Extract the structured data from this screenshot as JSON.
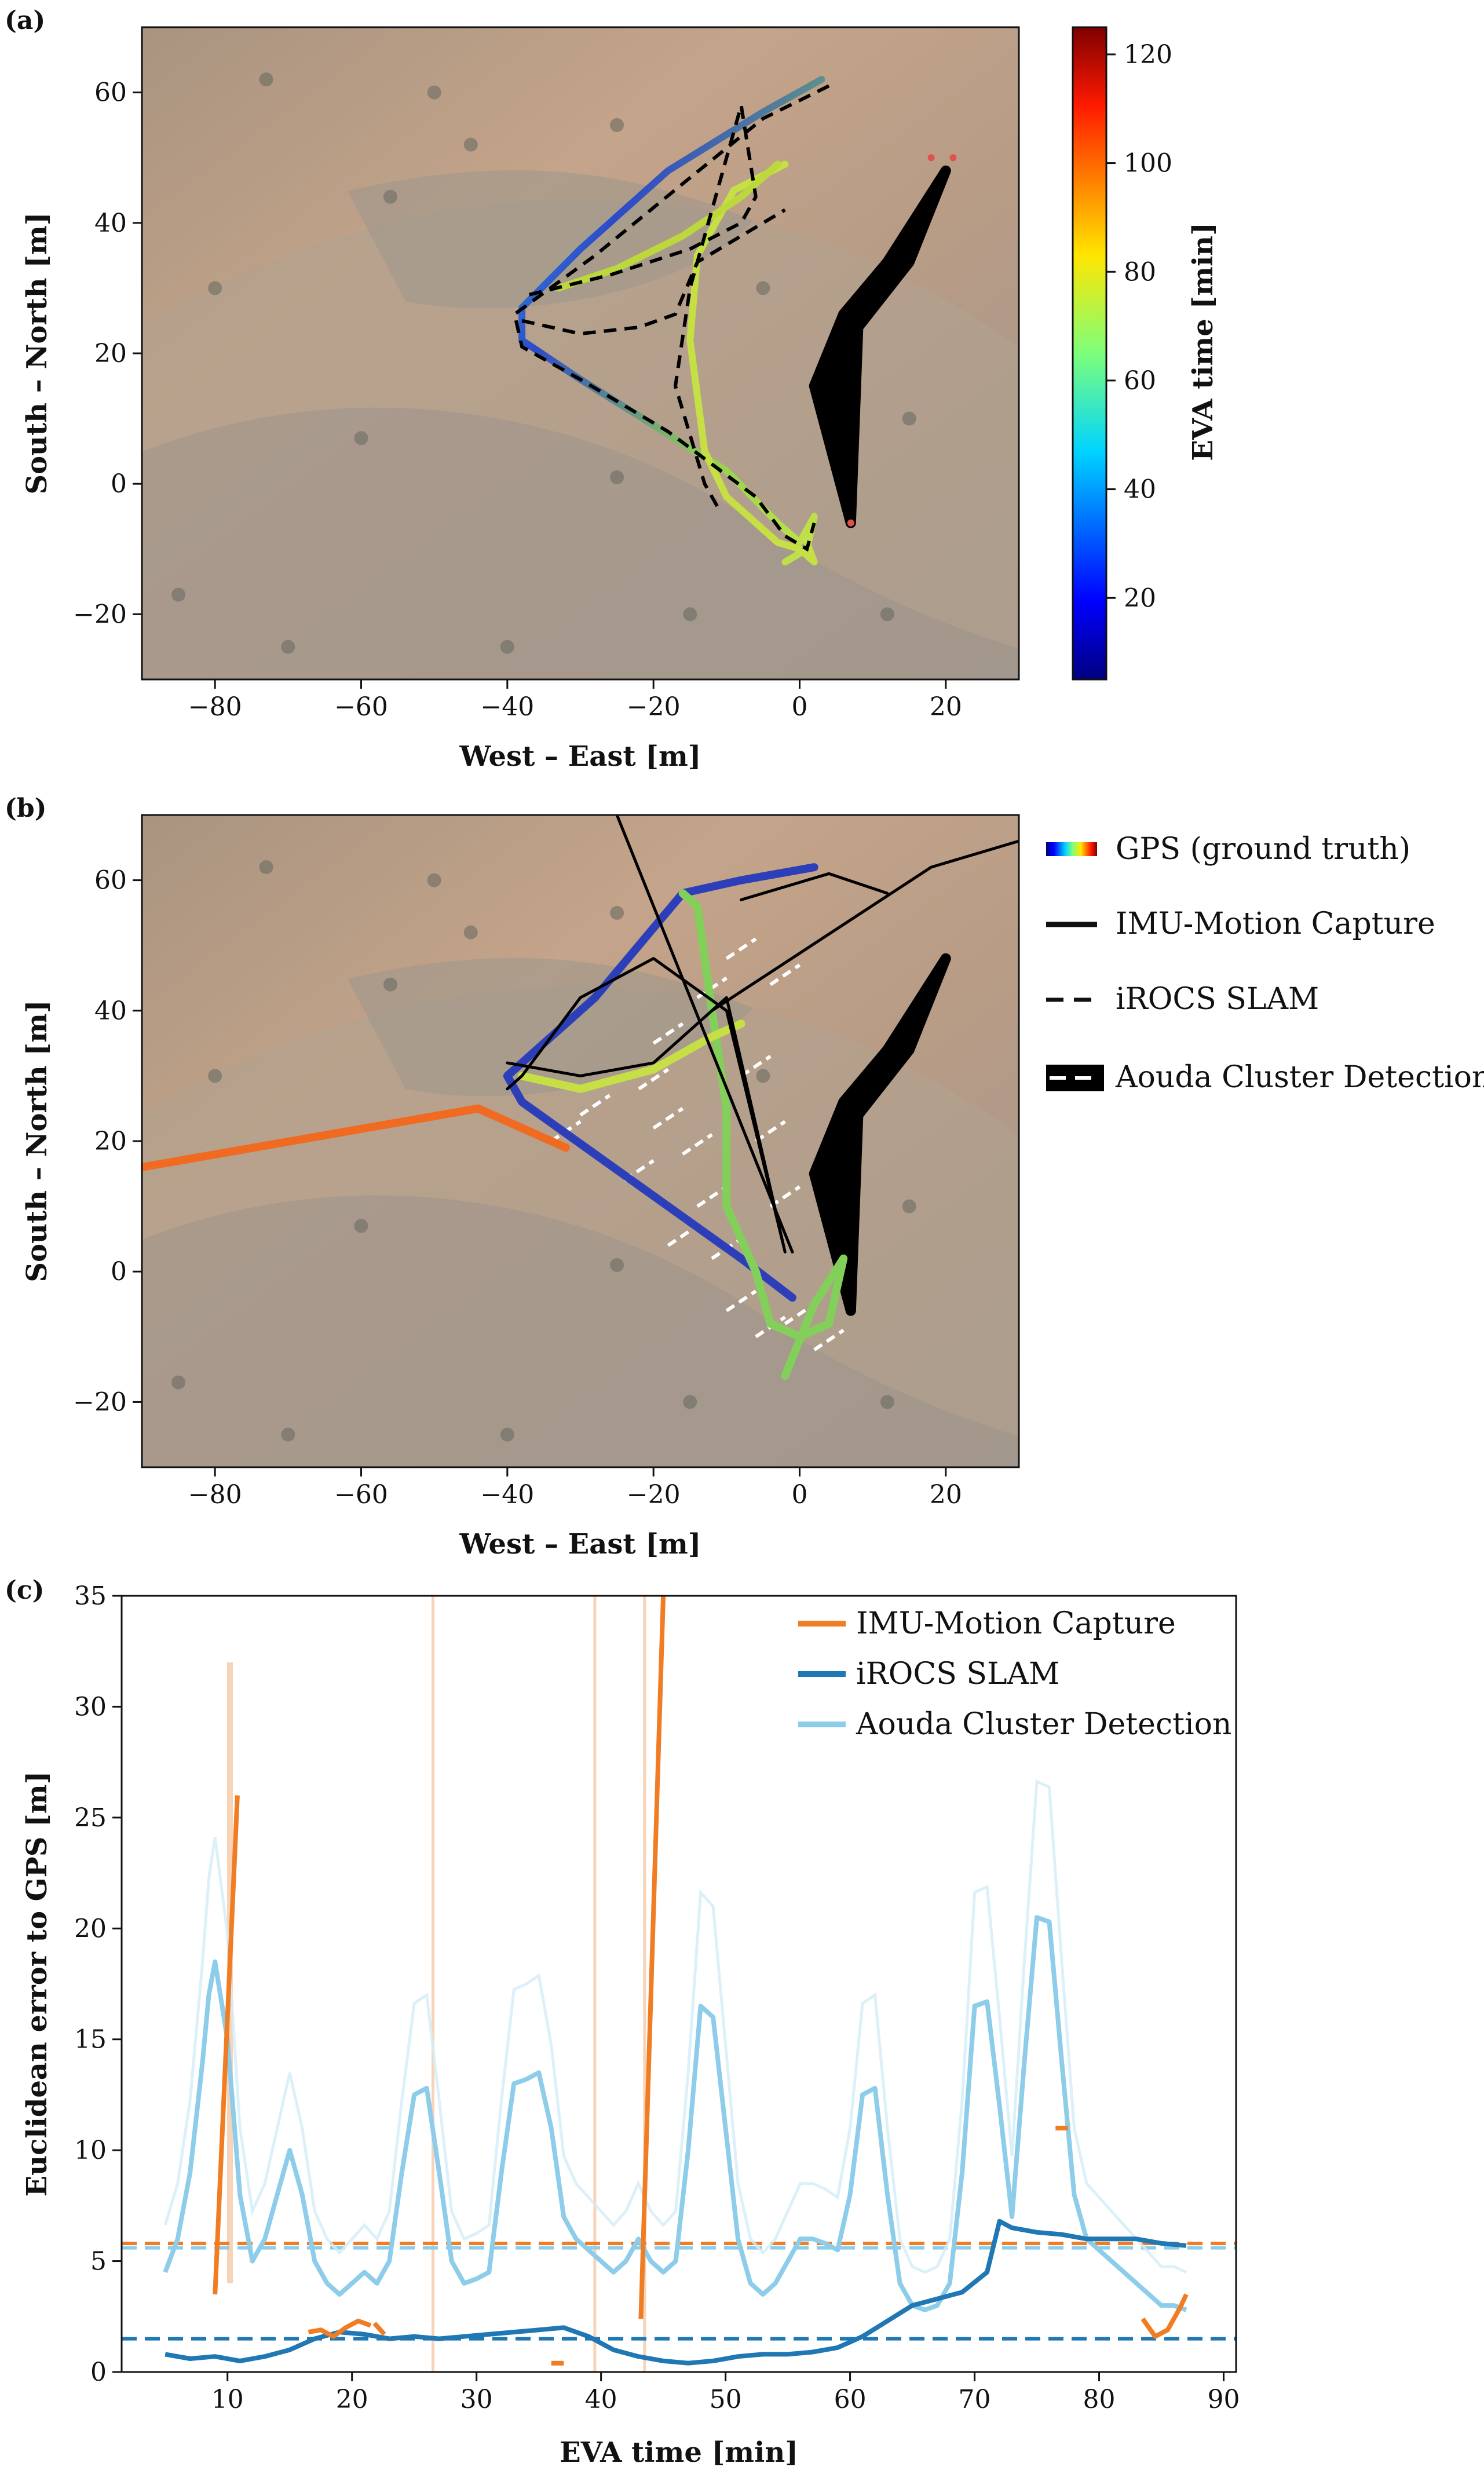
{
  "panel_labels": {
    "a": "(a)",
    "b": "(b)",
    "c": "(c)"
  },
  "chart_data": [
    {
      "type": "line",
      "panel": "(a)",
      "xlabel": "West – East [m]",
      "ylabel": "South – North [m]",
      "xlim": [
        -90,
        30
      ],
      "ylim": [
        -30,
        70
      ],
      "xticks": [
        -80,
        -60,
        -40,
        -20,
        0,
        20
      ],
      "yticks": [
        -20,
        0,
        20,
        40,
        60
      ],
      "background": "aerial-satellite-image",
      "colorbar": {
        "label": "EVA time [min]",
        "range": [
          5,
          125
        ],
        "ticks": [
          20,
          40,
          60,
          80,
          100,
          120
        ],
        "colormap": "jet"
      },
      "series": [
        {
          "style": "gps-colored",
          "x": [
            3,
            -5,
            -18,
            -30,
            -38,
            -38,
            -30,
            -20,
            -10,
            -3,
            0,
            2,
            1,
            -2
          ],
          "y": [
            62,
            57,
            48,
            36,
            27,
            22,
            16,
            9,
            2,
            -6,
            -9,
            -5,
            -10,
            -12
          ]
        },
        {
          "style": "gps-colored",
          "x": [
            -2,
            -9,
            -14,
            -15,
            -13,
            -10,
            -6,
            -3,
            0,
            2,
            1
          ],
          "y": [
            49,
            45,
            35,
            22,
            5,
            -2,
            -6,
            -9,
            -10,
            -12,
            -9
          ]
        },
        {
          "style": "gps-colored",
          "x": [
            -33,
            -25,
            -16,
            -8,
            -3
          ],
          "y": [
            30,
            33,
            38,
            44,
            49
          ]
        },
        {
          "style": "dashed-black",
          "x": [
            4,
            -5,
            -16,
            -28,
            -39,
            -38,
            -30,
            -18,
            -6,
            -2,
            1,
            2
          ],
          "y": [
            61,
            56,
            46,
            35,
            26,
            21,
            16,
            8,
            -2,
            -8,
            -10,
            -6
          ]
        },
        {
          "style": "dashed-black",
          "x": [
            -37,
            -26,
            -15,
            -8,
            -6,
            -8,
            -15,
            -17,
            -13,
            -11
          ],
          "y": [
            29,
            32,
            36,
            40,
            44,
            58,
            30,
            15,
            0,
            -4
          ]
        },
        {
          "style": "dashed-black",
          "x": [
            -38,
            -30,
            -22,
            -17,
            -14,
            -5,
            -2
          ],
          "y": [
            25,
            23,
            24,
            26,
            34,
            40,
            42
          ]
        }
      ],
      "cluster_band": {
        "x": [
          2,
          6,
          12,
          20,
          20,
          15,
          8,
          7,
          2
        ],
        "y": [
          15,
          26,
          34,
          48,
          48,
          34,
          24,
          -6,
          15
        ]
      },
      "cluster_endpoints_x": [
        18,
        21,
        7
      ],
      "cluster_endpoints_y": [
        50,
        50,
        -6
      ]
    },
    {
      "type": "line",
      "panel": "(b)",
      "xlabel": "West – East [m]",
      "ylabel": "South – North [m]",
      "xlim": [
        -90,
        30
      ],
      "ylim": [
        -30,
        70
      ],
      "xticks": [
        -80,
        -60,
        -40,
        -20,
        0,
        20
      ],
      "yticks": [
        -20,
        0,
        20,
        40,
        60
      ],
      "background": "aerial-satellite-image",
      "legend": [
        {
          "label": "GPS (ground truth)",
          "style": "gradient"
        },
        {
          "label": "IMU-Motion Capture",
          "style": "solid"
        },
        {
          "label": "iROCS SLAM",
          "style": "dashed"
        },
        {
          "label": "Aouda Cluster Detection",
          "style": "dashed-band"
        }
      ],
      "series": [
        {
          "style": "gps-colored",
          "x": [
            2,
            -8,
            -16,
            -28,
            -40,
            -38,
            -28,
            -18,
            -8,
            -1
          ],
          "y": [
            62,
            60,
            58,
            42,
            30,
            26,
            18,
            10,
            2,
            -4
          ]
        },
        {
          "style": "gps-colored",
          "x": [
            -16,
            -14,
            -12,
            -10,
            -10,
            -6,
            -4,
            0,
            4,
            6,
            2,
            -2
          ],
          "y": [
            58,
            56,
            40,
            25,
            10,
            0,
            -8,
            -10,
            -8,
            2,
            -5,
            -16
          ]
        },
        {
          "style": "gps-colored",
          "x": [
            -38,
            -30,
            -20,
            -12,
            -8
          ],
          "y": [
            30,
            28,
            31,
            36,
            38
          ]
        },
        {
          "style": "imu-orange",
          "x": [
            -90,
            -44,
            -32
          ],
          "y": [
            16,
            25,
            19
          ]
        },
        {
          "style": "imu-black",
          "x": [
            -40,
            -30,
            -20,
            -10,
            -2,
            -10,
            -20,
            -30,
            -38,
            -40
          ],
          "y": [
            32,
            30,
            32,
            42,
            3,
            40,
            48,
            42,
            30,
            28
          ]
        },
        {
          "style": "imu-black",
          "x": [
            -25,
            -1
          ],
          "y": [
            70,
            3
          ]
        },
        {
          "style": "imu-black",
          "x": [
            -12,
            18,
            30
          ],
          "y": [
            40,
            62,
            66
          ]
        },
        {
          "style": "imu-black",
          "x": [
            -8,
            4,
            12
          ],
          "y": [
            57,
            61,
            58
          ]
        }
      ]
    },
    {
      "type": "line",
      "panel": "(c)",
      "xlabel": "EVA time [min]",
      "ylabel": "Euclidean error to GPS [m]",
      "xlim": [
        1.5,
        91
      ],
      "ylim": [
        0,
        35
      ],
      "xticks": [
        10,
        20,
        30,
        40,
        50,
        60,
        70,
        80,
        90
      ],
      "yticks": [
        0,
        5,
        10,
        15,
        20,
        25,
        30,
        35
      ],
      "legend_placement": "top-right",
      "series": [
        {
          "name": "IMU-Motion Capture",
          "color": "#f07c24",
          "mean": 5.8,
          "segments": [
            {
              "x": [
                9,
                10.8
              ],
              "y": [
                3.5,
                26
              ]
            },
            {
              "x": [
                16.5,
                17.5,
                18.5,
                19.5,
                20.5,
                21.5
              ],
              "y": [
                1.8,
                1.9,
                1.6,
                2.0,
                2.3,
                2.1
              ]
            },
            {
              "x": [
                21.8,
                22.6
              ],
              "y": [
                2.2,
                1.7
              ]
            },
            {
              "x": [
                36,
                37
              ],
              "y": [
                0.4,
                0.4
              ]
            },
            {
              "x": [
                43.2,
                45
              ],
              "y": [
                2.4,
                35
              ]
            },
            {
              "x": [
                76.5,
                77.5
              ],
              "y": [
                11,
                11
              ]
            },
            {
              "x": [
                83.5,
                84.5,
                85.5,
                86.5,
                87
              ],
              "y": [
                2.4,
                1.6,
                1.9,
                2.9,
                3.5
              ]
            }
          ]
        },
        {
          "name": "iROCS SLAM",
          "color": "#1f77b4",
          "mean": 1.5,
          "x": [
            5,
            7,
            9,
            11,
            13,
            15,
            17,
            19,
            21,
            23,
            25,
            27,
            29,
            31,
            33,
            35,
            37,
            39,
            41,
            43,
            45,
            47,
            49,
            51,
            53,
            55,
            57,
            59,
            61,
            63,
            65,
            67,
            69,
            71,
            72,
            73,
            75,
            77,
            79,
            81,
            83,
            85,
            87
          ],
          "y": [
            0.8,
            0.6,
            0.7,
            0.5,
            0.7,
            1.0,
            1.5,
            1.8,
            1.7,
            1.5,
            1.6,
            1.5,
            1.6,
            1.7,
            1.8,
            1.9,
            2.0,
            1.6,
            1.0,
            0.7,
            0.5,
            0.4,
            0.5,
            0.7,
            0.8,
            0.8,
            0.9,
            1.1,
            1.6,
            2.3,
            3.0,
            3.3,
            3.6,
            4.5,
            6.8,
            6.5,
            6.3,
            6.2,
            6.0,
            6.0,
            6.0,
            5.8,
            5.7
          ]
        },
        {
          "name": "Aouda Cluster Detection",
          "color": "#8ecdea",
          "mean": 5.6,
          "x": [
            5,
            6,
            7,
            8,
            8.5,
            9,
            10,
            11,
            12,
            13,
            14,
            15,
            16,
            17,
            18,
            19,
            20,
            21,
            22,
            23,
            24,
            25,
            26,
            27,
            28,
            29,
            30,
            31,
            32,
            33,
            34,
            35,
            36,
            37,
            38,
            39,
            40,
            41,
            42,
            43,
            44,
            45,
            46,
            47,
            48,
            49,
            50,
            51,
            52,
            53,
            54,
            55,
            56,
            57,
            58,
            59,
            60,
            61,
            62,
            63,
            64,
            65,
            66,
            67,
            68,
            69,
            70,
            71,
            72,
            73,
            74,
            75,
            76,
            77,
            78,
            79,
            80,
            81,
            82,
            83,
            84,
            85,
            86,
            87
          ],
          "y": [
            4.5,
            6.0,
            9.0,
            14.0,
            17.0,
            18.5,
            15.0,
            8.0,
            5.0,
            6.0,
            8.0,
            10.0,
            8.0,
            5.0,
            4.0,
            3.5,
            4.0,
            4.5,
            4.0,
            5.0,
            9.0,
            12.5,
            12.8,
            9.0,
            5.0,
            4.0,
            4.2,
            4.5,
            9.0,
            13.0,
            13.2,
            13.5,
            11.0,
            7.0,
            6.0,
            5.5,
            5.0,
            4.5,
            5.0,
            6.0,
            5.0,
            4.5,
            5.0,
            10.0,
            16.5,
            16.0,
            11.0,
            6.0,
            4.0,
            3.5,
            4.0,
            5.0,
            6.0,
            6.0,
            5.8,
            5.5,
            8.0,
            12.5,
            12.8,
            8.0,
            4.0,
            3.0,
            2.8,
            3.0,
            4.0,
            9.0,
            16.5,
            16.7,
            12.0,
            7.0,
            14.0,
            20.5,
            20.3,
            14.0,
            8.0,
            6.0,
            5.5,
            5.0,
            4.5,
            4.0,
            3.5,
            3.0,
            3.0,
            2.8
          ]
        }
      ],
      "spikes_x": [
        26.5,
        39.5,
        43.5
      ],
      "imu_raw_spike": {
        "x": 10.2,
        "y": 32
      }
    }
  ]
}
